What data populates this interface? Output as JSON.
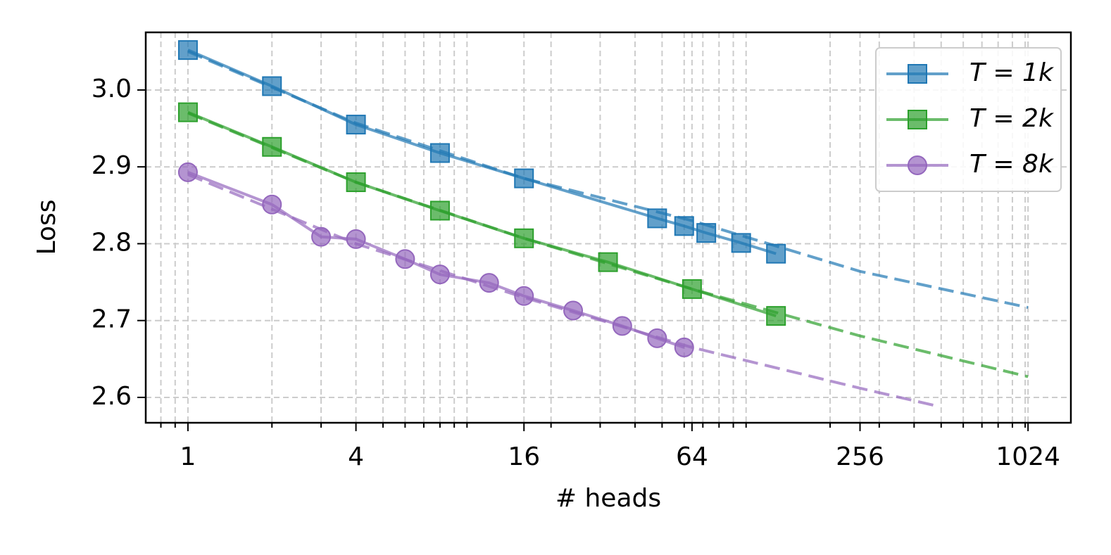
{
  "chart_data": {
    "type": "line",
    "xlabel": "# heads",
    "ylabel": "Loss",
    "xscale": "log",
    "grid": true,
    "legend": "upper right",
    "xlim": [
      0.706,
      1458
    ],
    "ylim": [
      2.567,
      3.075
    ],
    "xticks": [
      1,
      4,
      16,
      64,
      256,
      1024
    ],
    "xminorticks": [
      0.8,
      0.9,
      2,
      3,
      5,
      6,
      7,
      8,
      9,
      10,
      20,
      30,
      40,
      50,
      60,
      70,
      80,
      90,
      100,
      200,
      300,
      400,
      500,
      600,
      700,
      800,
      900,
      1000
    ],
    "yticks": [
      {
        "value": 2.6,
        "label": "2.6"
      },
      {
        "value": 2.7,
        "label": "2.7"
      },
      {
        "value": 2.8,
        "label": "2.8"
      },
      {
        "value": 2.9,
        "label": "2.9"
      },
      {
        "value": 3.0,
        "label": "3.0"
      }
    ],
    "series": [
      {
        "name": "T = 1k",
        "color": "#1f77b4",
        "marker": "square",
        "x": [
          1,
          2,
          4,
          8,
          16,
          48,
          60,
          72,
          96,
          128
        ],
        "values": [
          3.052,
          3.005,
          2.955,
          2.918,
          2.885,
          2.833,
          2.823,
          2.814,
          2.801,
          2.787
        ],
        "fit": {
          "x": [
            1,
            4,
            16,
            64,
            256,
            1024
          ],
          "values": [
            3.05,
            2.957,
            2.885,
            2.83,
            2.764,
            2.717
          ]
        }
      },
      {
        "name": "T = 2k",
        "color": "#2ca02c",
        "marker": "square",
        "x": [
          1,
          2,
          4,
          8,
          16,
          32,
          64,
          128
        ],
        "values": [
          2.971,
          2.926,
          2.88,
          2.843,
          2.807,
          2.776,
          2.741,
          2.706
        ],
        "fit": {
          "x": [
            1,
            4,
            16,
            64,
            256,
            1024
          ],
          "values": [
            2.97,
            2.88,
            2.807,
            2.741,
            2.68,
            2.627
          ]
        }
      },
      {
        "name": "T = 8k",
        "color": "#9467bd",
        "marker": "circle",
        "x": [
          1,
          2,
          3,
          4,
          6,
          8,
          12,
          16,
          24,
          36,
          48,
          60
        ],
        "values": [
          2.893,
          2.851,
          2.809,
          2.806,
          2.78,
          2.76,
          2.749,
          2.732,
          2.713,
          2.693,
          2.677,
          2.665
        ],
        "fit": {
          "x": [
            1,
            4,
            16,
            64,
            256,
            480
          ],
          "values": [
            2.89,
            2.8,
            2.73,
            2.665,
            2.612,
            2.589
          ]
        }
      }
    ]
  }
}
